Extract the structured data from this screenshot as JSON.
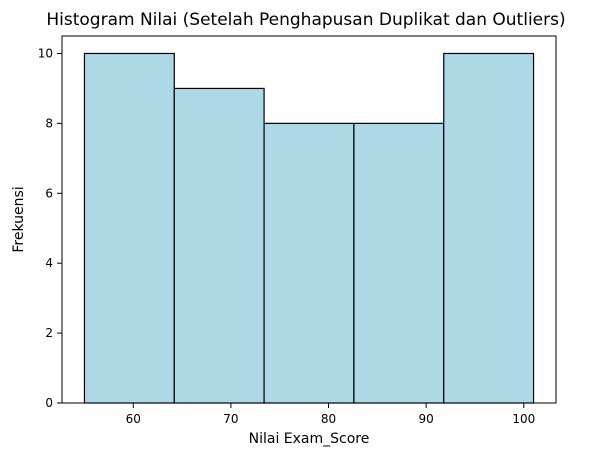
{
  "chart_data": {
    "type": "bar",
    "title": "Histogram Nilai (Setelah Penghapusan Duplikat dan Outliers)",
    "xlabel": "Nilai Exam_Score",
    "ylabel": "Frekuensi",
    "bins": [
      {
        "start": 55.0,
        "end": 64.2,
        "count": 10
      },
      {
        "start": 64.2,
        "end": 73.4,
        "count": 9
      },
      {
        "start": 73.4,
        "end": 82.6,
        "count": 8
      },
      {
        "start": 82.6,
        "end": 91.8,
        "count": 8
      },
      {
        "start": 91.8,
        "end": 101.0,
        "count": 10
      }
    ],
    "xlim": [
      52.7,
      103.3
    ],
    "ylim": [
      0,
      10.5
    ],
    "xticks": [
      60,
      70,
      80,
      90,
      100
    ],
    "yticks": [
      0,
      2,
      4,
      6,
      8,
      10
    ],
    "bar_color": "#add8e6",
    "edge_color": "#000000",
    "grid": false
  }
}
